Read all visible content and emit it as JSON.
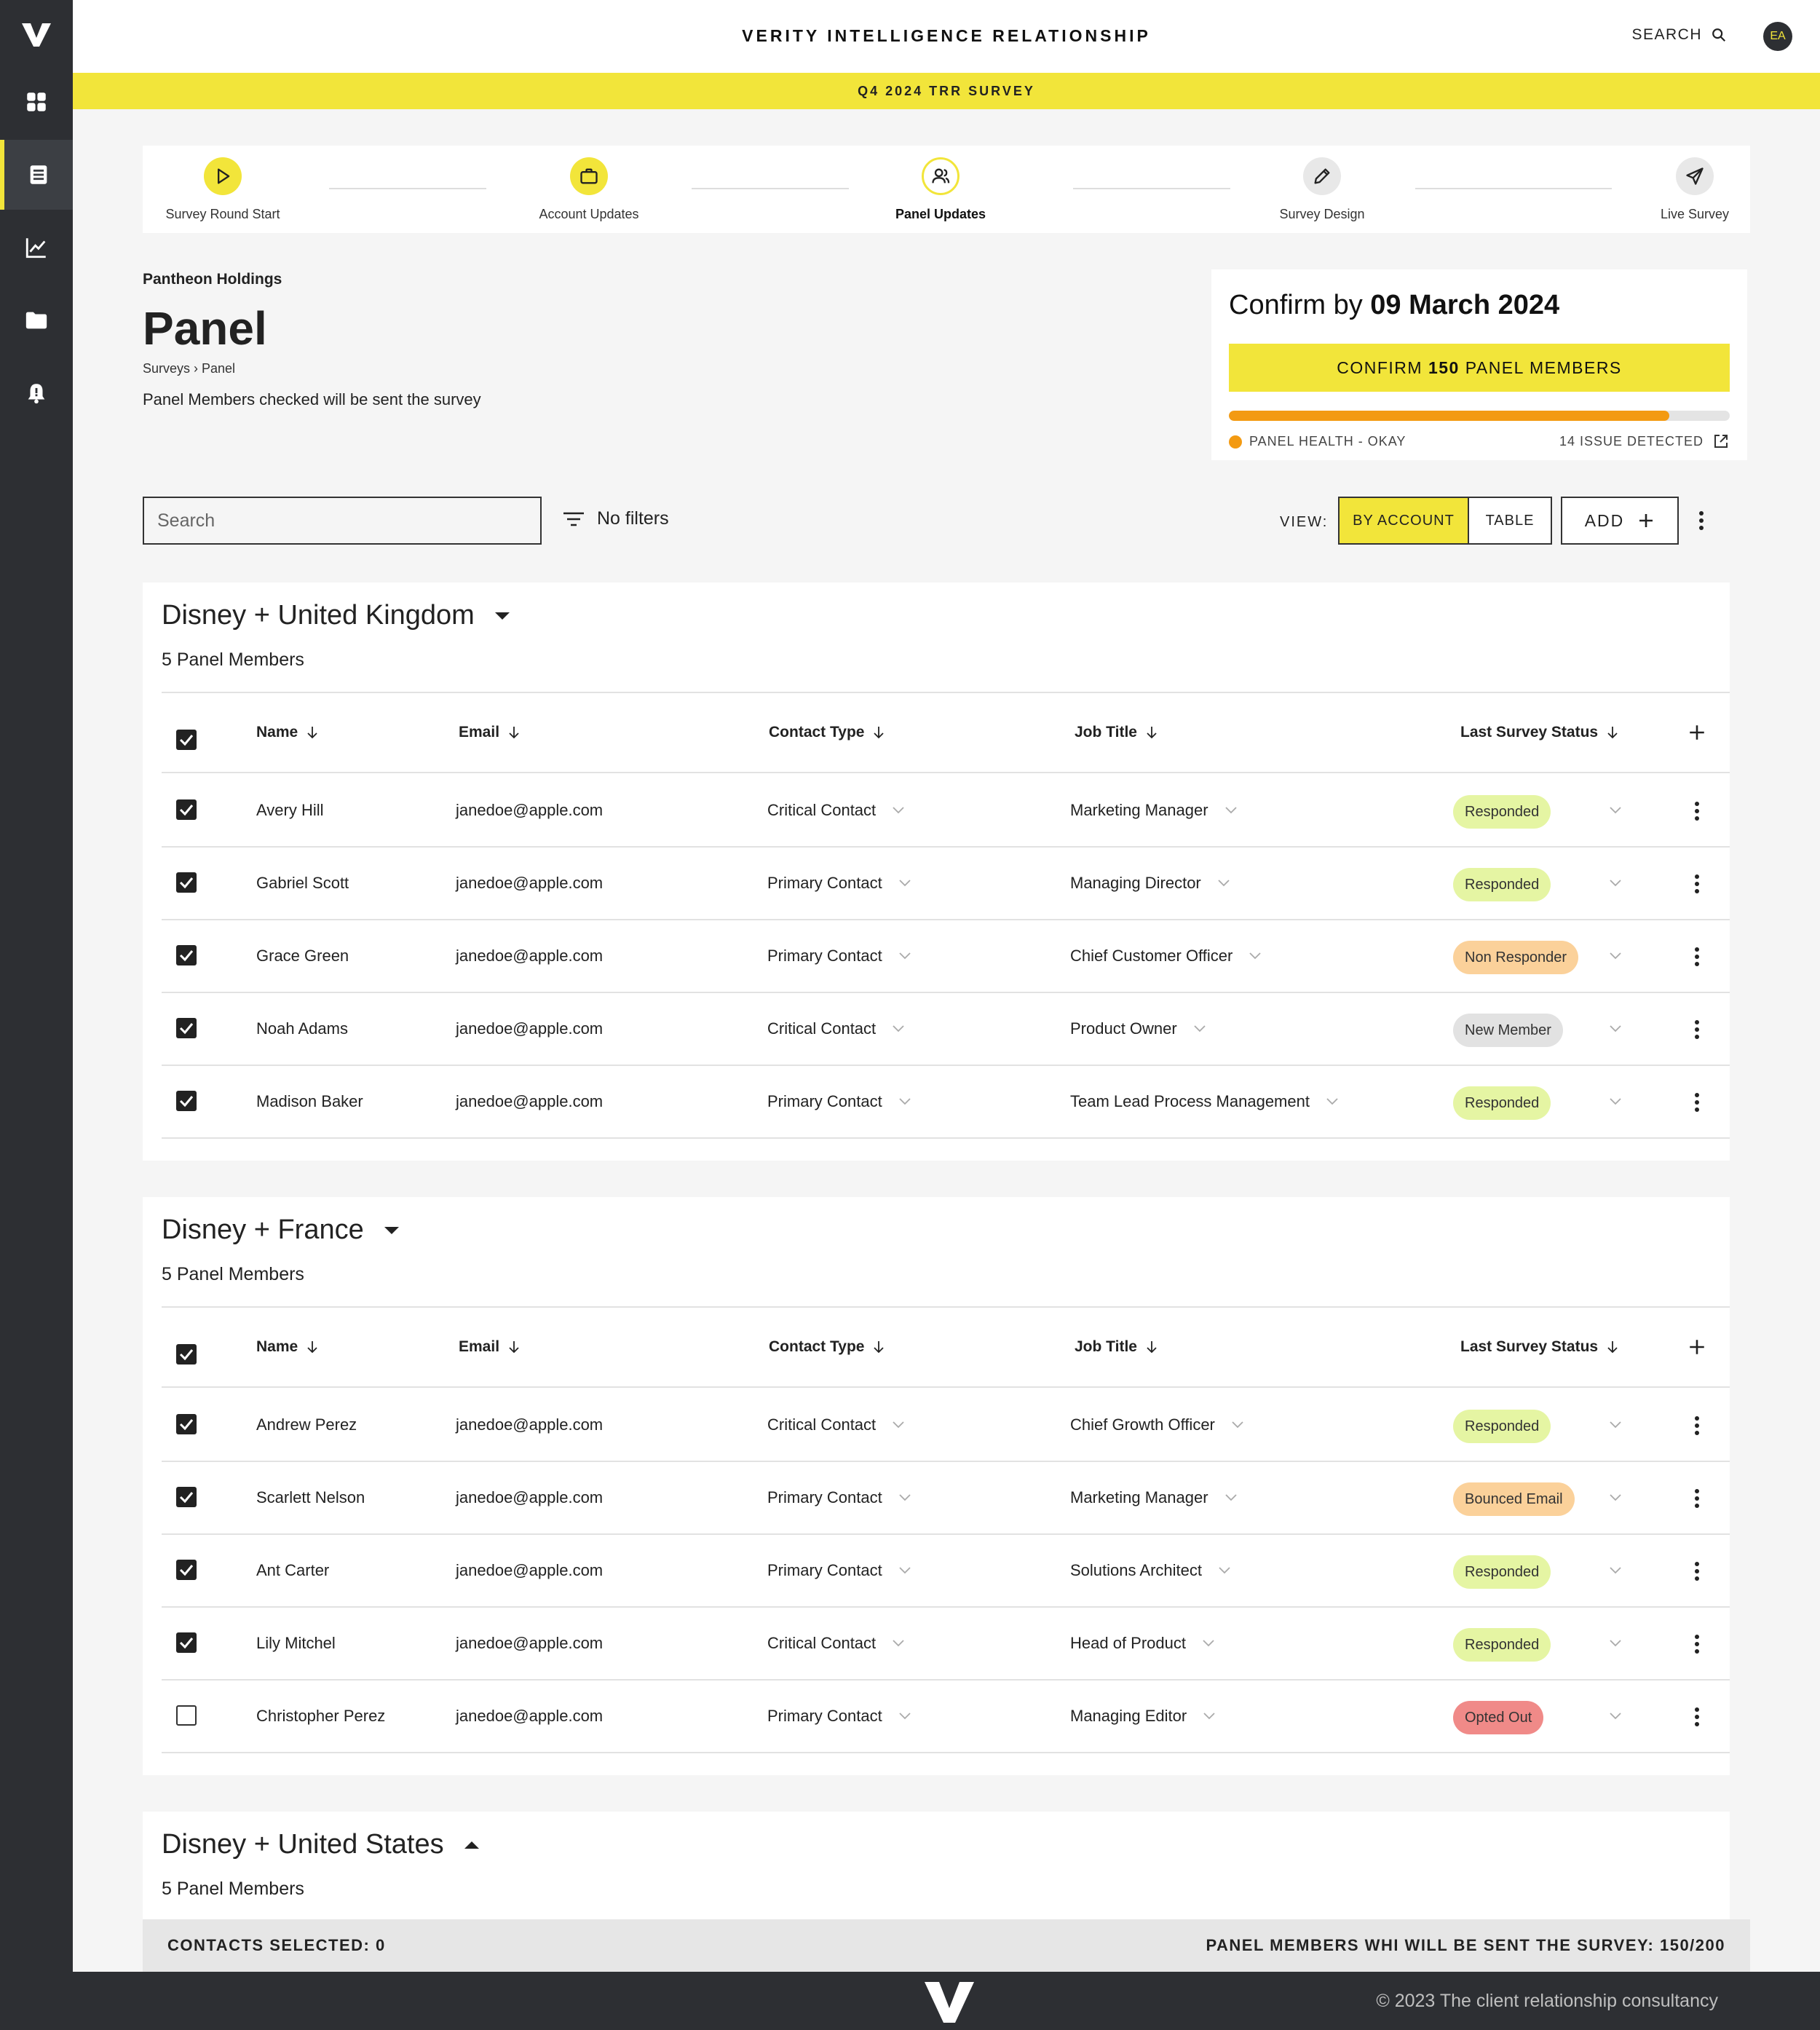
{
  "app": {
    "title": "VERITY INTELLIGENCE RELATIONSHIP",
    "search_label": "SEARCH",
    "avatar_initials": "EA"
  },
  "banner": "Q4 2024 TRR SURVEY",
  "sidebar": {
    "items": [
      "logo-icon",
      "dashboard-icon",
      "surveys-icon",
      "analytics-icon",
      "folder-icon",
      "notifications-icon"
    ],
    "active": "surveys-icon"
  },
  "stepper": {
    "steps": [
      {
        "label": "Survey Round Start",
        "icon": "play-icon",
        "state": "done"
      },
      {
        "label": "Account Updates",
        "icon": "briefcase-icon",
        "state": "done"
      },
      {
        "label": "Panel Updates",
        "icon": "people-icon",
        "state": "current"
      },
      {
        "label": "Survey Design",
        "icon": "pencil-icon",
        "state": "todo"
      },
      {
        "label": "Live Survey",
        "icon": "send-icon",
        "state": "todo"
      }
    ]
  },
  "page": {
    "company": "Pantheon Holdings",
    "title": "Panel",
    "breadcrumb": "Surveys › Panel",
    "hint": "Panel Members checked will be sent the survey"
  },
  "confirm": {
    "prefix": "Confirm by ",
    "date": "09 March 2024",
    "button_pre": "CONFIRM ",
    "button_count": "150",
    "button_post": " PANEL MEMBERS",
    "health_progress": 0.88,
    "health_label": "PANEL HEALTH - OKAY",
    "issues_label": "14 ISSUE DETECTED",
    "colors": {
      "accent": "#f2e53a",
      "health": "#f39a12"
    }
  },
  "toolbar": {
    "search_placeholder": "Search",
    "filter_label": "No filters",
    "view_label": "VIEW:",
    "view_options": [
      "BY ACCOUNT",
      "TABLE"
    ],
    "view_selected": "BY ACCOUNT",
    "add_label": "ADD"
  },
  "columns": [
    "Name",
    "Email",
    "Contact Type",
    "Job Title",
    "Last Survey Status"
  ],
  "groups": [
    {
      "title": "Disney + United Kingdom",
      "count_label": "5 Panel Members",
      "expanded": true,
      "header_checked": true,
      "rows": [
        {
          "checked": true,
          "name": "Avery Hill",
          "email": "janedoe@apple.com",
          "contact_type": "Critical Contact",
          "job_title": "Marketing Manager",
          "status": "Responded"
        },
        {
          "checked": true,
          "name": "Gabriel Scott",
          "email": "janedoe@apple.com",
          "contact_type": "Primary Contact",
          "job_title": "Managing Director",
          "status": "Responded"
        },
        {
          "checked": true,
          "name": "Grace Green",
          "email": "janedoe@apple.com",
          "contact_type": "Primary Contact",
          "job_title": "Chief Customer Officer",
          "status": "Non Responder"
        },
        {
          "checked": true,
          "name": "Noah Adams",
          "email": "janedoe@apple.com",
          "contact_type": "Critical Contact",
          "job_title": "Product Owner",
          "status": "New Member"
        },
        {
          "checked": true,
          "name": "Madison Baker",
          "email": "janedoe@apple.com",
          "contact_type": "Primary Contact",
          "job_title": "Team Lead Process Management",
          "status": "Responded"
        }
      ]
    },
    {
      "title": "Disney + France",
      "count_label": "5 Panel Members",
      "expanded": true,
      "header_checked": true,
      "rows": [
        {
          "checked": true,
          "name": "Andrew Perez",
          "email": "janedoe@apple.com",
          "contact_type": "Critical Contact",
          "job_title": "Chief Growth Officer",
          "status": "Responded"
        },
        {
          "checked": true,
          "name": "Scarlett Nelson",
          "email": "janedoe@apple.com",
          "contact_type": "Primary Contact",
          "job_title": "Marketing Manager",
          "status": "Bounced Email"
        },
        {
          "checked": true,
          "name": "Ant Carter",
          "email": "janedoe@apple.com",
          "contact_type": "Primary Contact",
          "job_title": "Solutions Architect",
          "status": "Responded"
        },
        {
          "checked": true,
          "name": "Lily Mitchel",
          "email": "janedoe@apple.com",
          "contact_type": "Critical Contact",
          "job_title": "Head of Product",
          "status": "Responded"
        },
        {
          "checked": false,
          "name": "Christopher Perez",
          "email": "janedoe@apple.com",
          "contact_type": "Primary Contact",
          "job_title": "Managing Editor",
          "status": "Opted Out"
        }
      ]
    },
    {
      "title": "Disney + United States",
      "count_label": "5 Panel Members",
      "expanded": false,
      "rows": []
    }
  ],
  "status_colors": {
    "Responded": "#e5f5a3",
    "Non Responder": "#fbd19a",
    "New Member": "#e2e2e2",
    "Bounced Email": "#fbd19a",
    "Opted Out": "#f08a88"
  },
  "status_bar": {
    "selected_label": "CONTACTS SELECTED: 0",
    "survey_label": "PANEL MEMBERS WHI WILL BE SENT THE SURVEY: 150/200"
  },
  "footer": {
    "copyright": "© 2023 The client relationship consultancy"
  }
}
